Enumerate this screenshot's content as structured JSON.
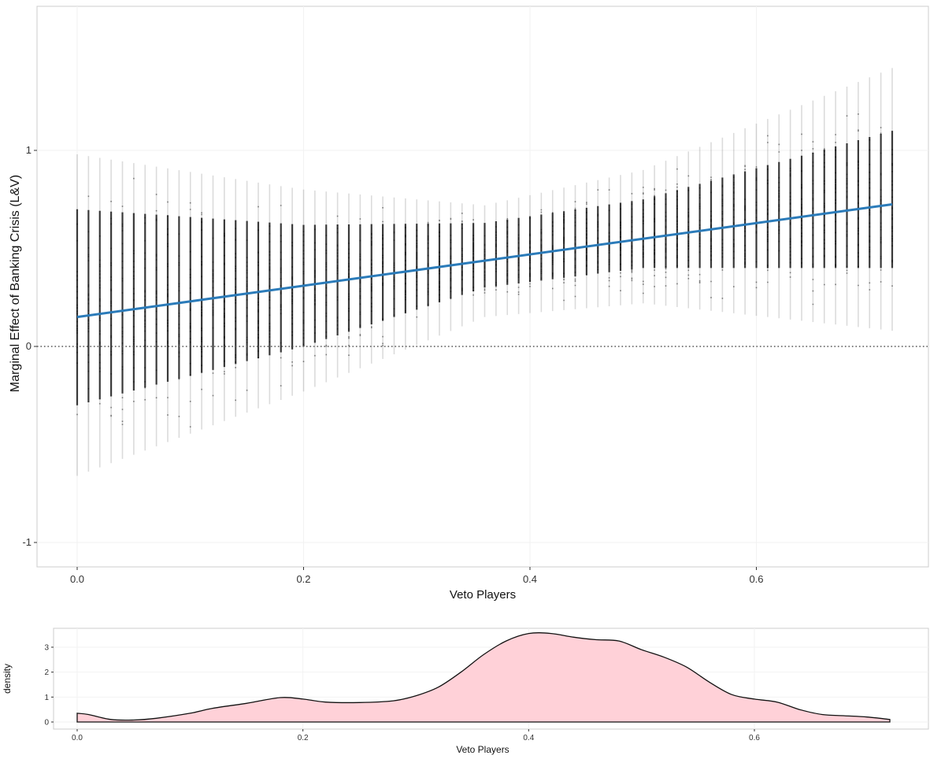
{
  "chart_data": [
    {
      "type": "scatter",
      "title": "",
      "xlabel": "Veto Players",
      "ylabel": "Marginal Effect of Banking Crisis (L&V)",
      "xlim": [
        0.0,
        0.755
      ],
      "ylim": [
        -1.12,
        1.73
      ],
      "x_ticks": [
        0.0,
        0.2,
        0.4,
        0.6
      ],
      "x_tick_labels": [
        "0.0",
        "0.2",
        "0.4",
        "0.6"
      ],
      "y_ticks": [
        -1,
        0,
        1
      ],
      "y_tick_labels": [
        "-1",
        "0",
        "1"
      ],
      "reference_line": {
        "y": 0,
        "style": "dotted",
        "color": "#555555"
      },
      "grid": true,
      "simulated_effect_spread": {
        "x_step": 0.01,
        "x_range": [
          0.0,
          0.72
        ],
        "lower": [
          [
            0.0,
            -0.66
          ],
          [
            0.2,
            -0.23
          ],
          [
            0.36,
            0.15
          ],
          [
            0.5,
            0.22
          ],
          [
            0.72,
            0.08
          ]
        ],
        "upper": [
          [
            0.0,
            0.98
          ],
          [
            0.2,
            0.8
          ],
          [
            0.36,
            0.72
          ],
          [
            0.5,
            0.9
          ],
          [
            0.72,
            1.42
          ]
        ],
        "dense_lower": [
          [
            0.0,
            -0.3
          ],
          [
            0.2,
            0.0
          ],
          [
            0.36,
            0.3
          ],
          [
            0.5,
            0.4
          ],
          [
            0.72,
            0.4
          ]
        ],
        "dense_upper": [
          [
            0.0,
            0.7
          ],
          [
            0.2,
            0.62
          ],
          [
            0.36,
            0.63
          ],
          [
            0.5,
            0.75
          ],
          [
            0.72,
            1.1
          ]
        ],
        "color": "#000000"
      },
      "series": [
        {
          "type": "line",
          "x": [
            0.0,
            0.72
          ],
          "y": [
            0.15,
            0.725
          ],
          "color": "#2b7bb9"
        }
      ]
    },
    {
      "type": "area",
      "title": "",
      "xlabel": "Veto Players",
      "ylabel": "density",
      "xlim": [
        -0.035,
        0.755
      ],
      "ylim": [
        -0.2,
        3.8
      ],
      "x_ticks": [
        0.0,
        0.2,
        0.4,
        0.6
      ],
      "x_tick_labels": [
        "0.0",
        "0.2",
        "0.4",
        "0.6"
      ],
      "y_ticks": [
        0,
        1,
        2,
        3
      ],
      "y_tick_labels": [
        "0",
        "1",
        "2",
        "3"
      ],
      "fill_color": "#ffd1d8",
      "line_color": "#111111",
      "x": [
        0.0,
        0.01,
        0.03,
        0.05,
        0.07,
        0.1,
        0.12,
        0.15,
        0.18,
        0.2,
        0.22,
        0.25,
        0.28,
        0.3,
        0.32,
        0.34,
        0.36,
        0.38,
        0.4,
        0.42,
        0.44,
        0.46,
        0.48,
        0.5,
        0.52,
        0.54,
        0.56,
        0.58,
        0.6,
        0.62,
        0.64,
        0.66,
        0.68,
        0.7,
        0.72
      ],
      "y": [
        0.35,
        0.3,
        0.1,
        0.08,
        0.15,
        0.35,
        0.55,
        0.75,
        0.98,
        0.92,
        0.8,
        0.78,
        0.85,
        1.05,
        1.4,
        2.0,
        2.7,
        3.25,
        3.55,
        3.55,
        3.4,
        3.3,
        3.25,
        2.9,
        2.6,
        2.2,
        1.6,
        1.1,
        0.92,
        0.8,
        0.5,
        0.3,
        0.25,
        0.2,
        0.1
      ]
    }
  ]
}
